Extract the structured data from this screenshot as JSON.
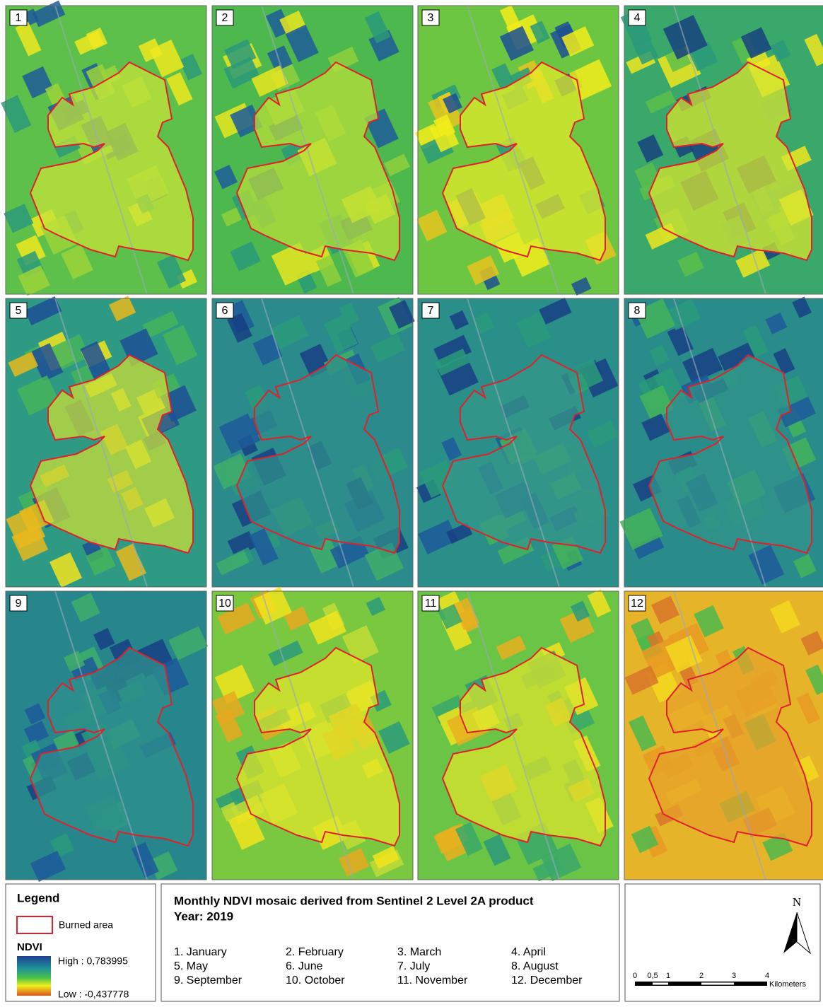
{
  "panels": [
    {
      "label": "1"
    },
    {
      "label": "2"
    },
    {
      "label": "3"
    },
    {
      "label": "4"
    },
    {
      "label": "5"
    },
    {
      "label": "6"
    },
    {
      "label": "7"
    },
    {
      "label": "8"
    },
    {
      "label": "9"
    },
    {
      "label": "10"
    },
    {
      "label": "11"
    },
    {
      "label": "12"
    }
  ],
  "legend": {
    "title": "Legend",
    "burned_area": "Burned area",
    "ndvi_title": "NDVI",
    "high": "High : 0,783995",
    "low": "Low : -0,437778"
  },
  "title": {
    "line1": "Monthly NDVI mosaic derived from Sentinel 2 Level 2A product",
    "line2": "Year: 2019"
  },
  "months": [
    "1. January",
    "2. February",
    "3. March",
    "4. April",
    "5. May",
    "6. June",
    "7. July",
    "8. August",
    "9. September",
    "10. October",
    "11. November",
    "12. December"
  ],
  "north": "N",
  "scale": {
    "ticks": [
      "0",
      "0,5",
      "1",
      "2",
      "3",
      "4"
    ],
    "unit": "Kilometers"
  }
}
